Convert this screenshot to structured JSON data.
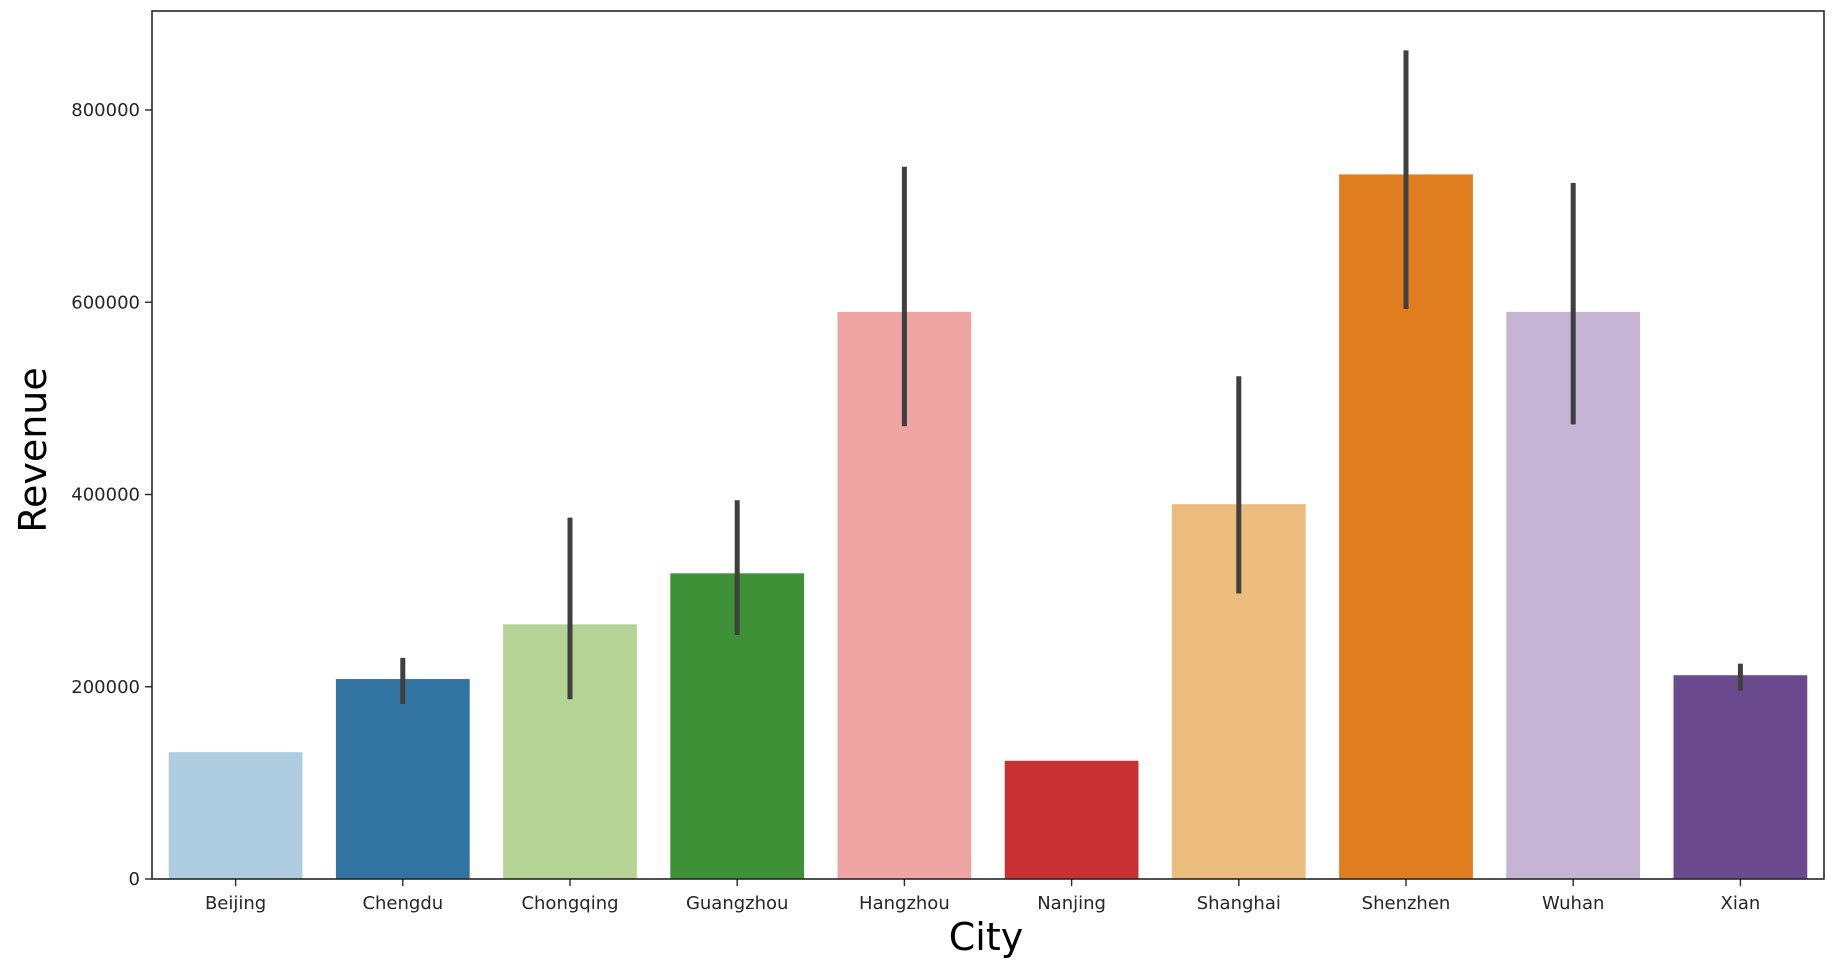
{
  "chart_data": {
    "type": "bar",
    "title": "",
    "xlabel": "City",
    "ylabel": "Revenue",
    "categories": [
      "Beijing",
      "Chengdu",
      "Chongqing",
      "Guangzhou",
      "Hangzhou",
      "Nanjing",
      "Shanghai",
      "Shenzhen",
      "Wuhan",
      "Xian"
    ],
    "values": [
      132000,
      208000,
      265000,
      318000,
      590000,
      123000,
      390000,
      733000,
      590000,
      212000
    ],
    "error_low": [
      null,
      182000,
      187000,
      254000,
      471000,
      null,
      297000,
      593000,
      473000,
      196000
    ],
    "error_high": [
      null,
      230000,
      376000,
      394000,
      741000,
      null,
      523000,
      862000,
      724000,
      224000
    ],
    "colors": [
      "#aecde1",
      "#3274a1",
      "#b4d394",
      "#3f9138",
      "#efa5a4",
      "#c83133",
      "#ecbc7f",
      "#e07e1f",
      "#c6b4d4",
      "#6a4a8d"
    ],
    "error_bar_color": "#3f3f3f",
    "yticks": [
      0,
      200000,
      400000,
      600000,
      800000
    ],
    "ytick_labels": [
      "0",
      "200000",
      "400000",
      "600000",
      "800000"
    ],
    "ylim": [
      0,
      903000
    ],
    "grid": false,
    "legend": "none"
  }
}
